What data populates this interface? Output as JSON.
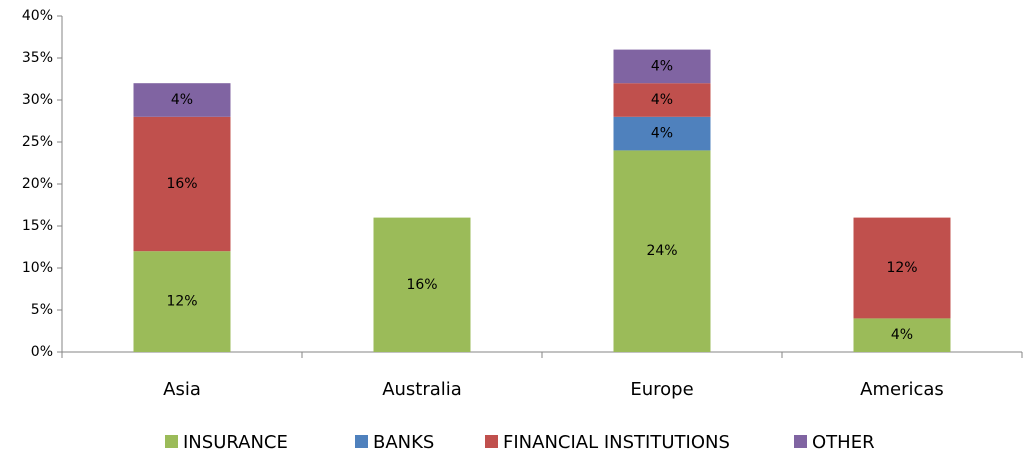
{
  "chart_data": {
    "type": "stacked_bar",
    "categories": [
      "Asia",
      "Australia",
      "Europe",
      "Americas"
    ],
    "series": [
      {
        "name": "INSURANCE",
        "color": "#9bbb59",
        "values": [
          12,
          16,
          24,
          4
        ],
        "value_labels": [
          "12%",
          "16%",
          "24%",
          "4%"
        ]
      },
      {
        "name": "BANKS",
        "color": "#4f81bd",
        "values": [
          null,
          null,
          4,
          null
        ],
        "value_labels": [
          null,
          null,
          "4%",
          null
        ]
      },
      {
        "name": "FINANCIAL INSTITUTIONS",
        "color": "#c0504d",
        "values": [
          16,
          null,
          4,
          12
        ],
        "value_labels": [
          "16%",
          null,
          "4%",
          "12%"
        ]
      },
      {
        "name": "OTHER",
        "color": "#8064a2",
        "values": [
          4,
          null,
          4,
          null
        ],
        "value_labels": [
          "4%",
          null,
          "4%",
          null
        ]
      }
    ],
    "ylim": [
      0,
      40
    ],
    "yticks": [
      {
        "value": 0,
        "label": "0%"
      },
      {
        "value": 5,
        "label": "5%"
      },
      {
        "value": 10,
        "label": "10%"
      },
      {
        "value": 15,
        "label": "15%"
      },
      {
        "value": 20,
        "label": "20%"
      },
      {
        "value": 25,
        "label": "25%"
      },
      {
        "value": 30,
        "label": "30%"
      },
      {
        "value": 35,
        "label": "35%"
      },
      {
        "value": 40,
        "label": "40%"
      }
    ],
    "legend": "bottom"
  }
}
